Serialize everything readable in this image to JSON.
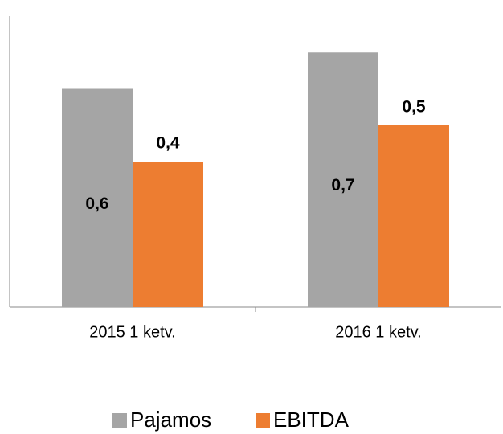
{
  "chart_data": {
    "type": "bar",
    "categories": [
      "2015 1 ketv.",
      "2016 1 ketv."
    ],
    "series": [
      {
        "name": "Pajamos",
        "color": "#a5a5a5",
        "values": [
          0.6,
          0.7
        ],
        "value_labels": [
          "0,6",
          "0,7"
        ]
      },
      {
        "name": "EBITDA",
        "color": "#ed7d31",
        "values": [
          0.4,
          0.5
        ],
        "value_labels": [
          "0,4",
          "0,5"
        ]
      }
    ],
    "ylim": [
      0,
      0.8
    ]
  }
}
